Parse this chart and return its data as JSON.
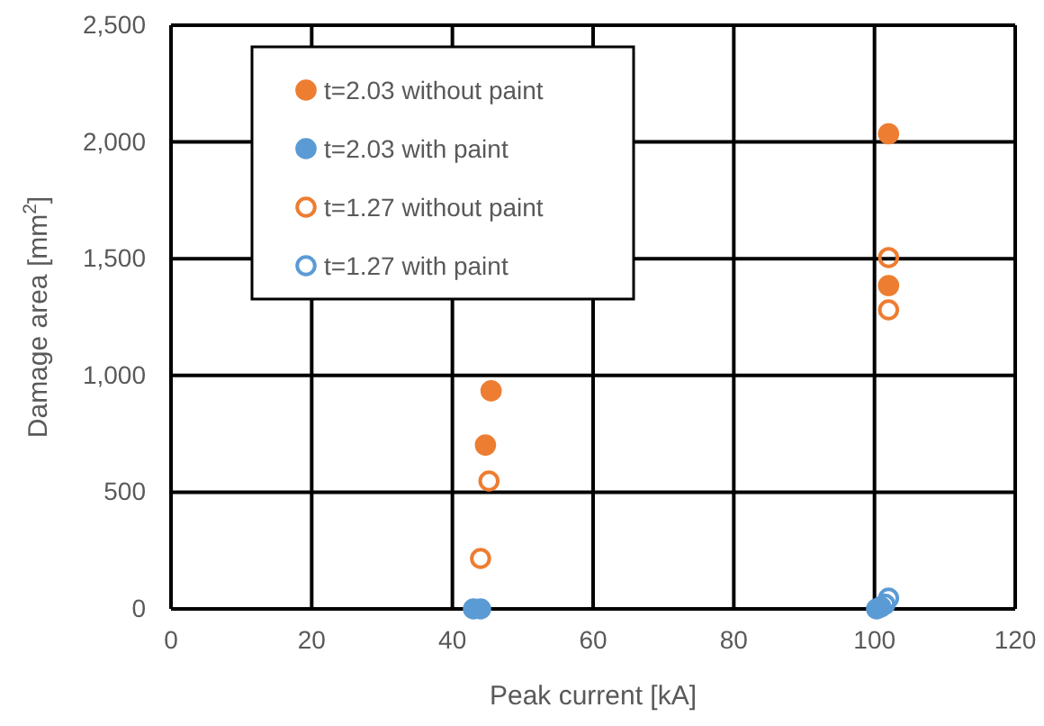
{
  "chart_data": {
    "type": "scatter",
    "xlabel": "Peak current [kA]",
    "ylabel": "Damage area [mm$^{2}$]",
    "xlim": [
      0,
      120
    ],
    "xticks": [
      0,
      20,
      40,
      60,
      80,
      100,
      120
    ],
    "ylim": [
      0,
      2500
    ],
    "yticks": [
      {
        "value": 0,
        "label": "0"
      },
      {
        "value": 500,
        "label": "500"
      },
      {
        "value": 1000,
        "label": "1,000"
      },
      {
        "value": 1500,
        "label": "1,500"
      },
      {
        "value": 2000,
        "label": "2,000"
      },
      {
        "value": 2500,
        "label": "2,500"
      }
    ],
    "grid": true,
    "legend": "top left",
    "series": [
      {
        "name": "t=2.03 without paint",
        "color": "#ed7d31",
        "marker": "circle",
        "x": [
          45.5,
          44.7,
          102,
          102
        ],
        "values": [
          934,
          702,
          2035,
          1385
        ]
      },
      {
        "name": "t=2.03 with paint",
        "color": "#5b9bd5",
        "marker": "circle",
        "x": [
          43,
          44,
          100.3,
          100.9
        ],
        "values": [
          0,
          0,
          0,
          8
        ]
      },
      {
        "name": "t=1.27 without paint",
        "color": "#ed7d31",
        "marker": "circle-open",
        "x": [
          45.2,
          44,
          102,
          102
        ],
        "values": [
          548,
          216,
          1505,
          1281
        ]
      },
      {
        "name": "t=1.27 with paint",
        "color": "#5b9bd5",
        "marker": "circle-open",
        "x": [
          102,
          101.5
        ],
        "values": [
          46,
          20
        ]
      }
    ]
  }
}
